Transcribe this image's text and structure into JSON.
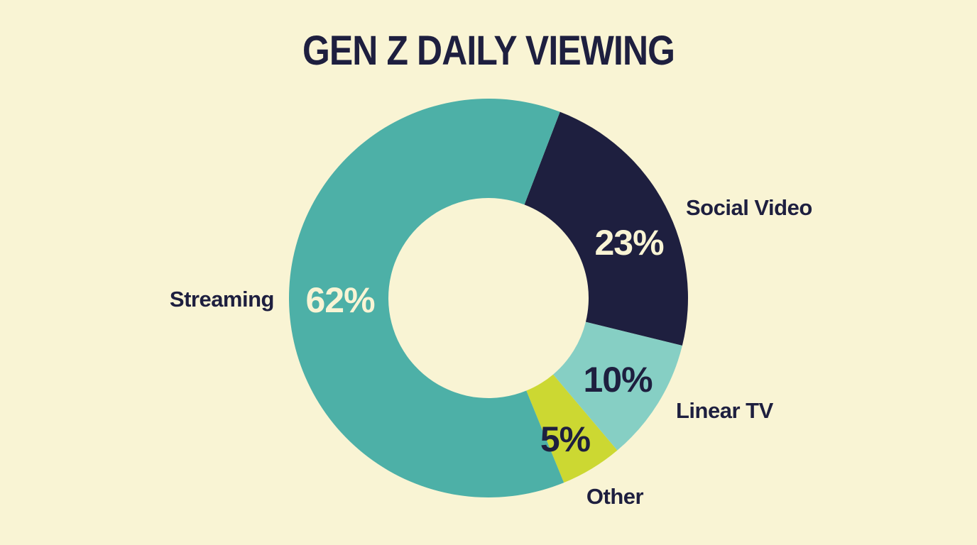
{
  "chart_data": {
    "type": "pie",
    "variant": "donut",
    "title": "GEN Z DAILY VIEWING",
    "slices": [
      {
        "label": "Social Video",
        "value": 23,
        "display": "23%",
        "color": "#1e1f3f",
        "text_color": "#f9f4d4"
      },
      {
        "label": "Linear TV",
        "value": 10,
        "display": "10%",
        "color": "#86cfc4",
        "text_color": "#1e1f3f"
      },
      {
        "label": "Other",
        "value": 5,
        "display": "5%",
        "color": "#ccd832",
        "text_color": "#1e1f3f"
      },
      {
        "label": "Streaming",
        "value": 62,
        "display": "62%",
        "color": "#4db0a7",
        "text_color": "#f9f4d4"
      }
    ],
    "legend": "none",
    "grid": false
  },
  "colors": {
    "background": "#f9f4d4",
    "text": "#1e1f3f"
  }
}
